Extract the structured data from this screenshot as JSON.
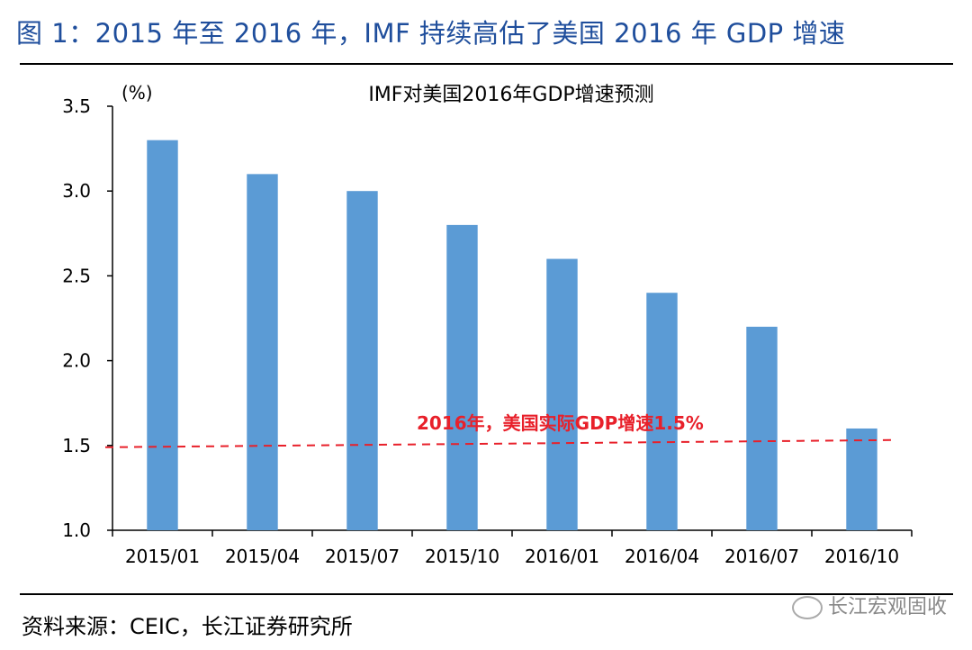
{
  "figure": {
    "title": "图 1：2015 年至 2016 年，IMF 持续高估了美国 2016 年 GDP 增速",
    "source": "资料来源：CEIC，长江证券研究所",
    "watermark": "长江宏观固收"
  },
  "colors": {
    "title": "#1f4e9c",
    "bar": "#5b9bd5",
    "reference_line": "#e8202a"
  },
  "chart_data": {
    "type": "bar",
    "title": "IMF对美国2016年GDP增速预测",
    "ylabel": "(%)",
    "xlabel": "",
    "categories": [
      "2015/01",
      "2015/04",
      "2015/07",
      "2015/10",
      "2016/01",
      "2016/04",
      "2016/07",
      "2016/10"
    ],
    "values": [
      3.3,
      3.1,
      3.0,
      2.8,
      2.6,
      2.4,
      2.2,
      1.6
    ],
    "ylim": [
      1.0,
      3.5
    ],
    "yticks": [
      "1.0",
      "1.5",
      "2.0",
      "2.5",
      "3.0",
      "3.5"
    ],
    "reference_line": {
      "value": 1.5,
      "label": "2016年，美国实际GDP增速1.5%",
      "style": "dashed"
    },
    "grid": false,
    "legend": "none"
  }
}
